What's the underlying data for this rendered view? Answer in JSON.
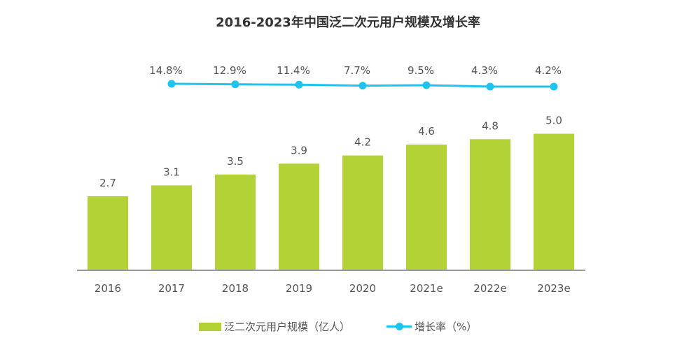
{
  "chart_data": {
    "type": "bar+line",
    "title": "2016-2023年中国泛二次元用户规模及增长率",
    "categories": [
      "2016",
      "2017",
      "2018",
      "2019",
      "2020",
      "2021e",
      "2022e",
      "2023e"
    ],
    "series": [
      {
        "name": "泛二次元用户规模（亿人）",
        "type": "bar",
        "color": "#b2d235",
        "values": [
          2.7,
          3.1,
          3.5,
          3.9,
          4.2,
          4.6,
          4.8,
          5.0
        ]
      },
      {
        "name": "增长率（%）",
        "type": "line",
        "color": "#1ec3ef",
        "values": [
          null,
          14.8,
          12.9,
          11.4,
          7.7,
          9.5,
          4.3,
          4.2
        ]
      }
    ],
    "legend": "bottom",
    "grid": false
  }
}
